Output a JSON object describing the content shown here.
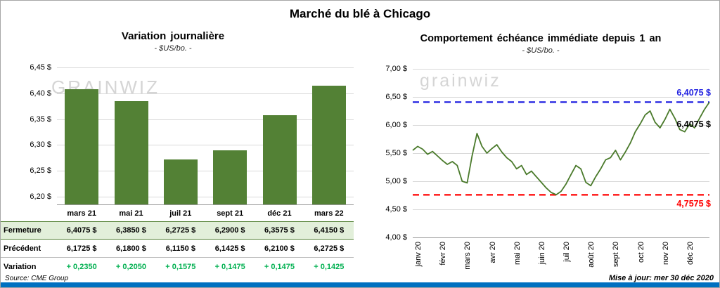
{
  "page": {
    "title": "Marché du blé à Chicago",
    "source": "Source: CME Group",
    "updated": "Mise à jour: mer 30 déc 2020",
    "accent_bar_color": "#0070C0"
  },
  "chart_data": [
    {
      "type": "bar",
      "title": "Variation journalière",
      "subtitle": "- $US/bo. -",
      "watermark": "GRAINWIZ",
      "categories": [
        "mars 21",
        "mai 21",
        "juil 21",
        "sept 21",
        "déc 21",
        "mars 22"
      ],
      "values": [
        6.4075,
        6.385,
        6.2725,
        6.29,
        6.3575,
        6.415
      ],
      "ylim": [
        6.185,
        6.45
      ],
      "yticks": [
        6.2,
        6.25,
        6.3,
        6.35,
        6.4,
        6.45
      ],
      "ytick_labels": [
        "6,20 $",
        "6,25 $",
        "6,30 $",
        "6,35 $",
        "6,40 $",
        "6,45 $"
      ],
      "bar_color": "#538135",
      "grid": true,
      "legend": "none"
    },
    {
      "type": "line",
      "title": "Comportement échéance immédiate depuis 1 an",
      "subtitle": "- $US/bo. -",
      "watermark": "grainwiz",
      "x_labels": [
        "janv 20",
        "févr 20",
        "mars 20",
        "avr 20",
        "mai 20",
        "juin 20",
        "juil 20",
        "août 20",
        "sept 20",
        "oct 20",
        "nov 20",
        "déc 20"
      ],
      "values": [
        5.55,
        5.62,
        5.57,
        5.48,
        5.53,
        5.45,
        5.37,
        5.3,
        5.35,
        5.28,
        5.0,
        4.97,
        5.45,
        5.85,
        5.62,
        5.5,
        5.58,
        5.65,
        5.52,
        5.42,
        5.35,
        5.22,
        5.28,
        5.12,
        5.18,
        5.08,
        4.98,
        4.88,
        4.8,
        4.76,
        4.82,
        4.95,
        5.12,
        5.28,
        5.22,
        4.98,
        4.92,
        5.08,
        5.22,
        5.38,
        5.42,
        5.55,
        5.38,
        5.52,
        5.68,
        5.88,
        6.02,
        6.18,
        6.25,
        6.05,
        5.95,
        6.1,
        6.28,
        6.12,
        5.92,
        5.88,
        6.02,
        5.95,
        6.12,
        6.28,
        6.4075
      ],
      "ylim": [
        4.0,
        7.0
      ],
      "yticks": [
        4.0,
        4.5,
        5.0,
        5.5,
        6.0,
        6.5,
        7.0
      ],
      "ytick_labels": [
        "4,00 $",
        "4,50 $",
        "5,00 $",
        "5,50 $",
        "6,00 $",
        "6,50 $",
        "7,00 $"
      ],
      "line_color": "#4A7A2B",
      "ref_lines": [
        {
          "value": 6.4075,
          "label": "6,4075 $",
          "color": "#1F1FE0",
          "style": "dashed"
        },
        {
          "value": 4.7575,
          "label": "4,7575 $",
          "color": "#FF0000",
          "style": "dashed"
        }
      ],
      "last_point_label": "6,4075 $",
      "grid": true,
      "legend": "none"
    }
  ],
  "table": {
    "rows": [
      {
        "label": "Fermeture",
        "values": [
          "6,4075 $",
          "6,3850 $",
          "6,2725 $",
          "6,2900 $",
          "6,3575 $",
          "6,4150 $"
        ],
        "highlight": true,
        "value_color": "#000000"
      },
      {
        "label": "Précédent",
        "values": [
          "6,1725 $",
          "6,1800 $",
          "6,1150 $",
          "6,1425 $",
          "6,2100 $",
          "6,2725 $"
        ],
        "highlight": false,
        "value_color": "#000000"
      },
      {
        "label": "Variation",
        "values": [
          "+ 0,2350",
          "+ 0,2050",
          "+ 0,1575",
          "+ 0,1475",
          "+ 0,1475",
          "+ 0,1425"
        ],
        "highlight": false,
        "value_color": "#00B050"
      }
    ]
  }
}
